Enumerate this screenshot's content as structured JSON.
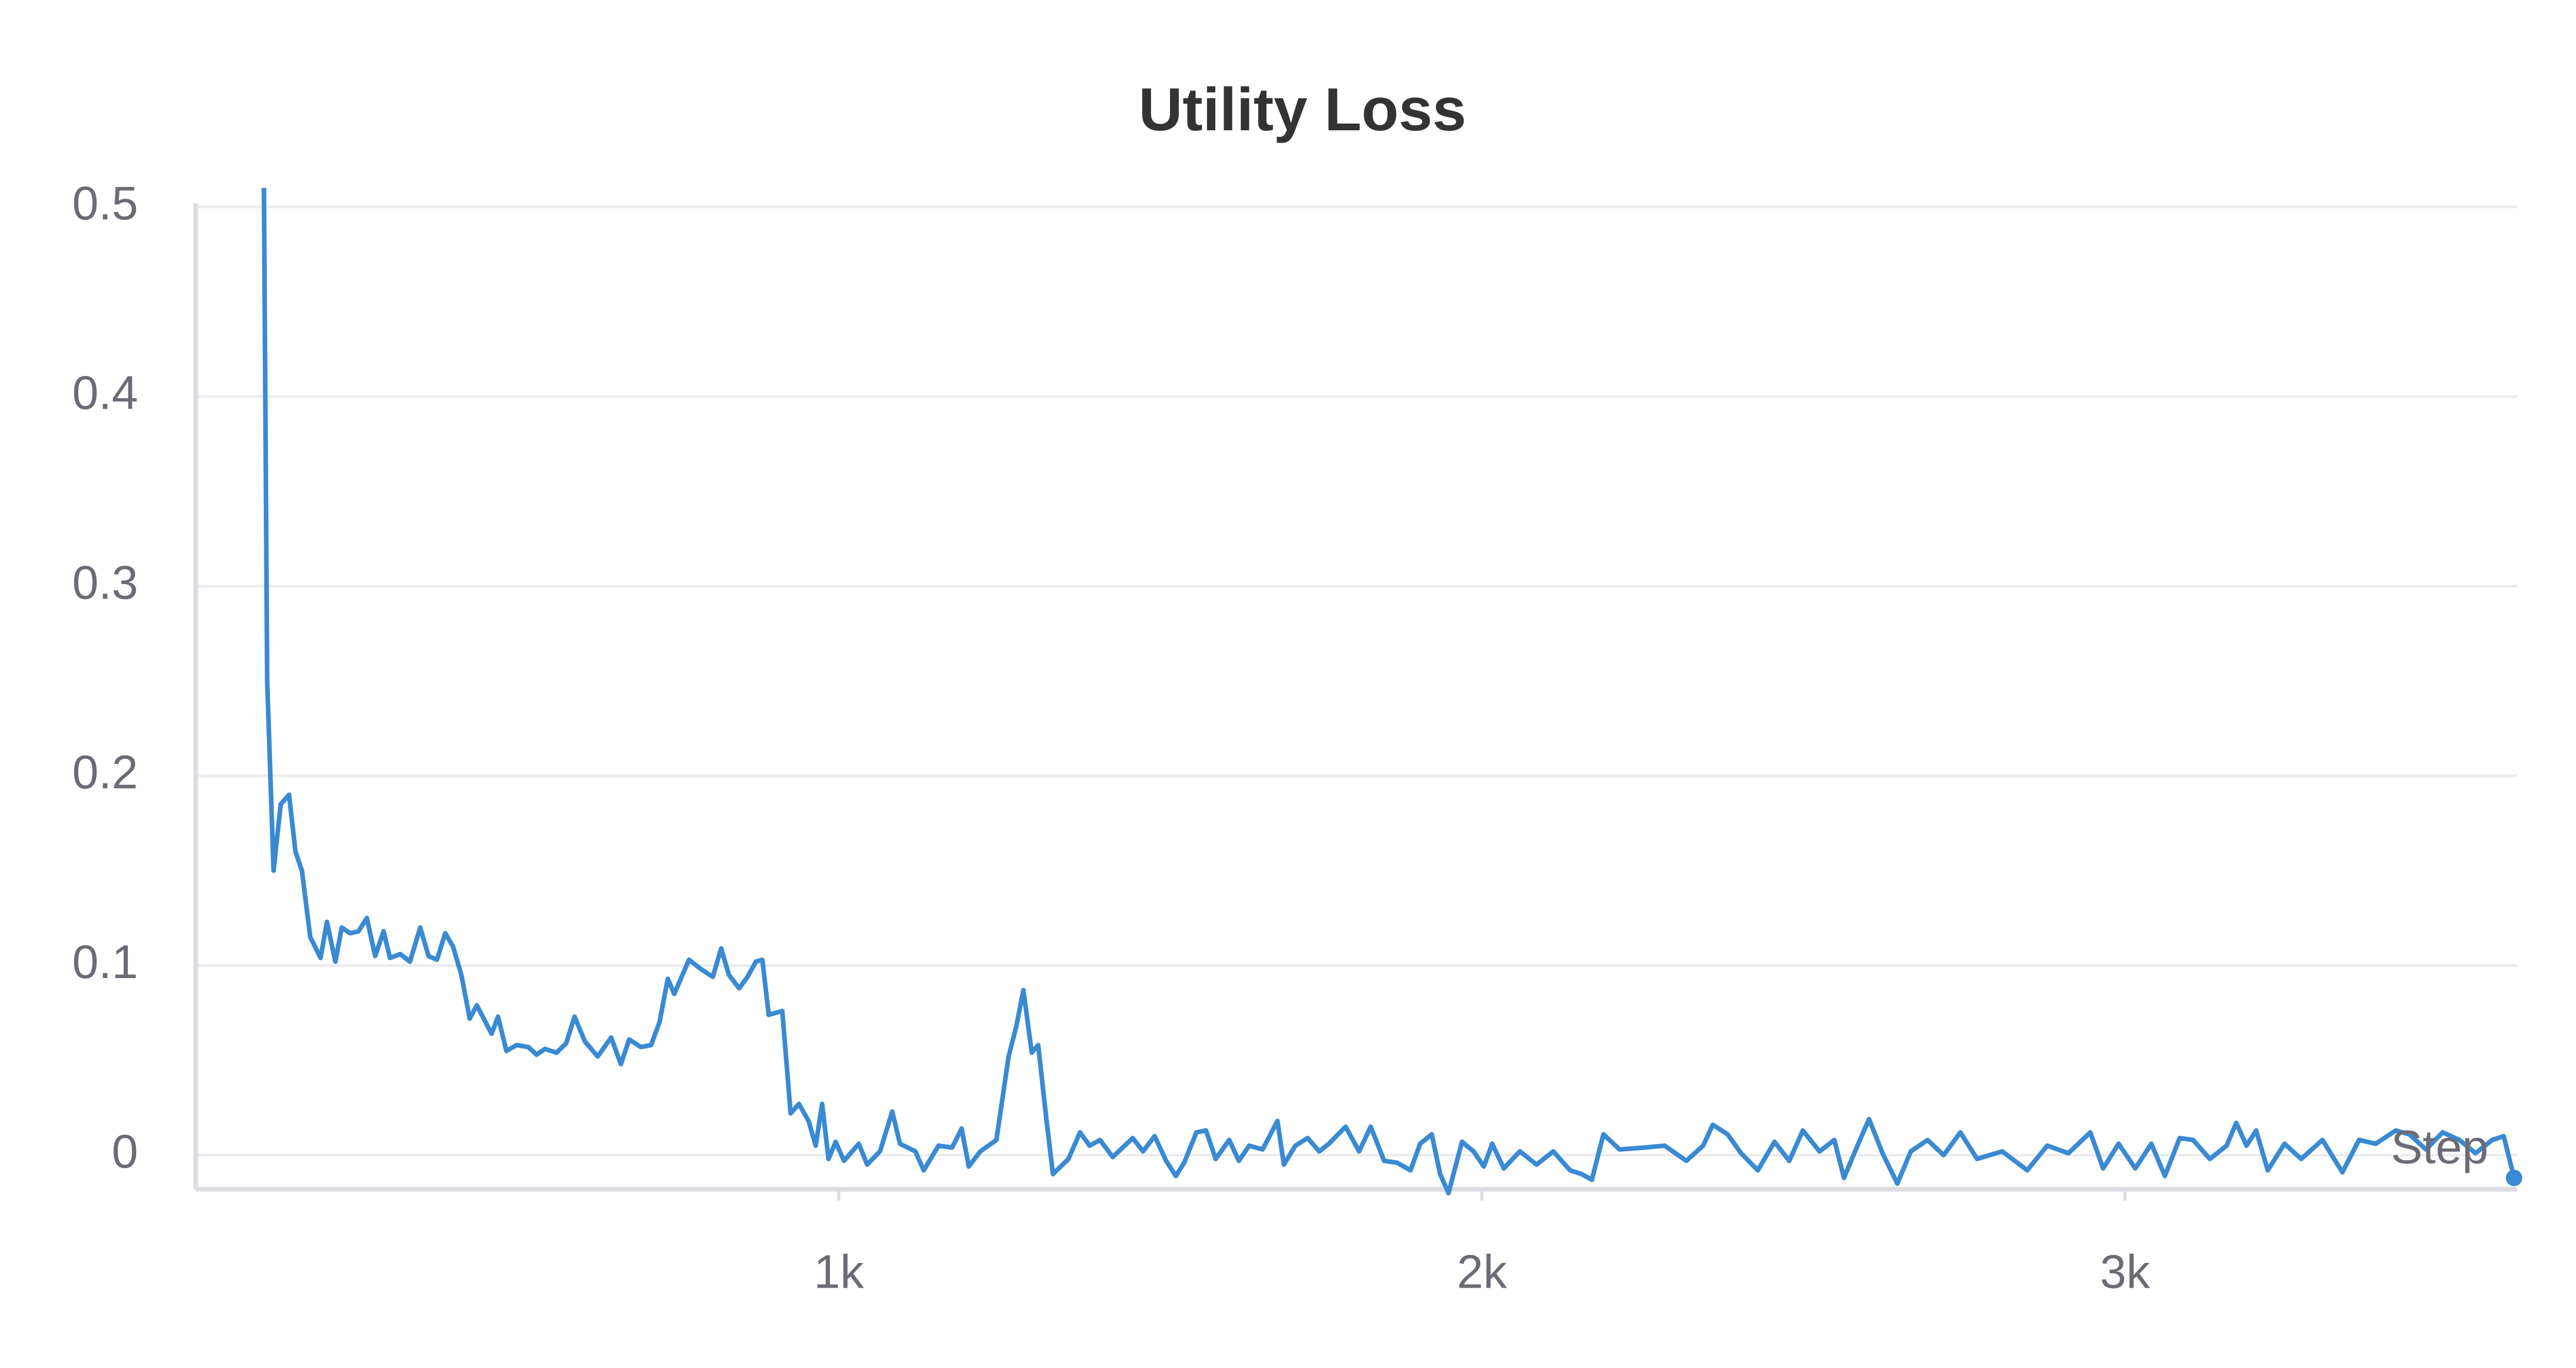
{
  "chart_data": {
    "type": "line",
    "title": "Utility Loss",
    "x_label": "Step",
    "color": "#3a8ad3",
    "x": [
      106,
      111,
      121,
      132,
      145,
      155,
      165,
      178,
      194,
      204,
      217,
      227,
      240,
      253,
      266,
      279,
      292,
      302,
      318,
      333,
      349,
      362,
      375,
      388,
      400,
      413,
      426,
      437,
      460,
      470,
      483,
      499,
      517,
      530,
      543,
      561,
      576,
      589,
      605,
      625,
      646,
      661,
      674,
      692,
      708,
      721,
      734,
      744,
      767,
      786,
      804,
      817,
      829,
      845,
      858,
      871,
      881,
      891,
      912,
      925,
      938,
      953,
      964,
      974,
      984,
      995,
      1008,
      1031,
      1044,
      1064,
      1083,
      1095,
      1119,
      1132,
      1155,
      1176,
      1191,
      1202,
      1220,
      1245,
      1264,
      1276,
      1287,
      1300,
      1310,
      1323,
      1333,
      1357,
      1375,
      1390,
      1406,
      1426,
      1457,
      1473,
      1491,
      1509,
      1524,
      1537,
      1556,
      1571,
      1586,
      1607,
      1622,
      1638,
      1659,
      1682,
      1692,
      1710,
      1729,
      1747,
      1762,
      1788,
      1809,
      1827,
      1848,
      1868,
      1889,
      1904,
      1922,
      1935,
      1948,
      1969,
      1987,
      2003,
      2016,
      2034,
      2059,
      2085,
      2111,
      2137,
      2155,
      2171,
      2189,
      2214,
      2253,
      2284,
      2318,
      2344,
      2359,
      2382,
      2403,
      2429,
      2455,
      2478,
      2499,
      2525,
      2548,
      2563,
      2584,
      2602,
      2623,
      2646,
      2667,
      2693,
      2718,
      2744,
      2770,
      2809,
      2848,
      2879,
      2912,
      2946,
      2966,
      2990,
      3016,
      3041,
      3062,
      3085,
      3106,
      3132,
      3158,
      3173,
      3189,
      3204,
      3222,
      3248,
      3274,
      3307,
      3338,
      3364,
      3390,
      3421,
      3442,
      3468,
      3494,
      3520,
      3545,
      3571,
      3589,
      3605
    ],
    "values": [
      0.51,
      0.25,
      0.15,
      0.185,
      0.19,
      0.16,
      0.15,
      0.115,
      0.104,
      0.123,
      0.102,
      0.12,
      0.117,
      0.118,
      0.125,
      0.105,
      0.118,
      0.104,
      0.106,
      0.102,
      0.12,
      0.105,
      0.103,
      0.117,
      0.11,
      0.095,
      0.072,
      0.079,
      0.064,
      0.073,
      0.055,
      0.058,
      0.057,
      0.053,
      0.056,
      0.054,
      0.059,
      0.073,
      0.06,
      0.052,
      0.062,
      0.048,
      0.061,
      0.057,
      0.058,
      0.07,
      0.093,
      0.085,
      0.103,
      0.098,
      0.094,
      0.109,
      0.095,
      0.088,
      0.094,
      0.102,
      0.103,
      0.074,
      0.076,
      0.022,
      0.027,
      0.018,
      0.005,
      0.027,
      -0.002,
      0.007,
      -0.003,
      0.006,
      -0.005,
      0.002,
      0.023,
      0.006,
      0.002,
      -0.008,
      0.005,
      0.004,
      0.014,
      -0.006,
      0.002,
      0.008,
      0.052,
      0.068,
      0.087,
      0.054,
      0.058,
      0.018,
      -0.01,
      -0.002,
      0.012,
      0.005,
      0.008,
      -0.001,
      0.009,
      0.002,
      0.01,
      -0.003,
      -0.011,
      -0.004,
      0.012,
      0.013,
      -0.002,
      0.008,
      -0.003,
      0.005,
      0.003,
      0.018,
      -0.005,
      0.005,
      0.009,
      0.002,
      0.006,
      0.015,
      0.002,
      0.015,
      -0.003,
      -0.004,
      -0.008,
      0.006,
      0.011,
      -0.01,
      -0.02,
      0.007,
      0.002,
      -0.006,
      0.006,
      -0.007,
      0.002,
      -0.005,
      0.002,
      -0.008,
      -0.01,
      -0.013,
      0.011,
      0.003,
      0.004,
      0.005,
      -0.003,
      0.005,
      0.016,
      0.011,
      0.001,
      -0.008,
      0.007,
      -0.003,
      0.013,
      0.002,
      0.008,
      -0.012,
      0.005,
      0.019,
      0.001,
      -0.015,
      0.002,
      0.008,
      0.0,
      0.012,
      -0.002,
      0.002,
      -0.008,
      0.005,
      0.001,
      0.012,
      -0.007,
      0.006,
      -0.007,
      0.006,
      -0.011,
      0.009,
      0.008,
      -0.002,
      0.005,
      0.017,
      0.005,
      0.013,
      -0.008,
      0.006,
      -0.002,
      0.008,
      -0.009,
      0.008,
      0.006,
      0.013,
      0.011,
      0.003,
      0.012,
      0.008,
      0.001,
      0.008,
      0.01,
      -0.012
    ],
    "xlim": [
      0,
      3610
    ],
    "ylim": [
      -0.018,
      0.517
    ],
    "xticks": [
      {
        "value": 1000,
        "label": "1k"
      },
      {
        "value": 2000,
        "label": "2k"
      },
      {
        "value": 3000,
        "label": "3k"
      }
    ],
    "yticks": [
      0,
      0.1,
      0.2,
      0.3,
      0.4,
      0.5
    ],
    "grid": true
  }
}
